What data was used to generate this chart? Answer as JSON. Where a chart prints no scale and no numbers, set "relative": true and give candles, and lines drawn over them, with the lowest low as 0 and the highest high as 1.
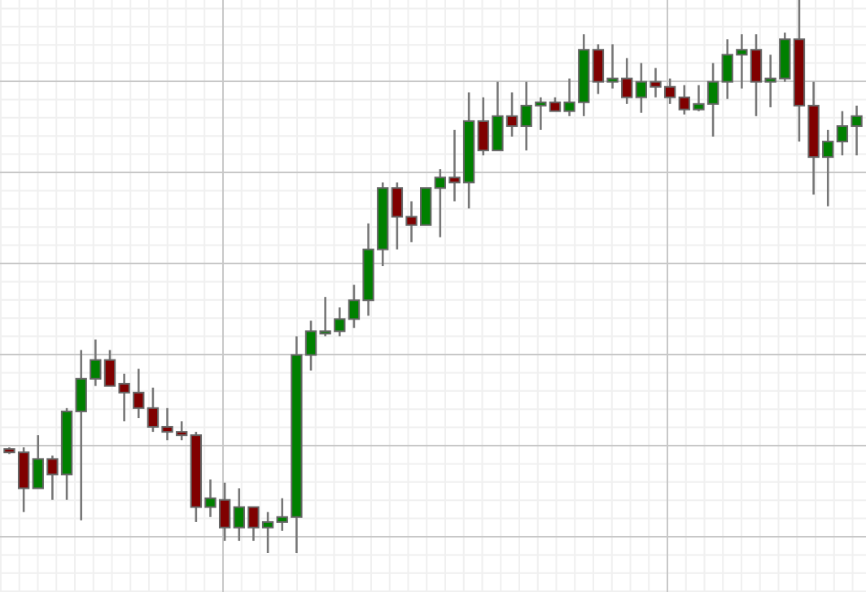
{
  "chart_data": {
    "type": "candlestick",
    "relative": true,
    "grid": true,
    "categories": [
      null,
      null,
      null,
      null,
      null,
      null,
      null,
      null,
      null,
      null,
      null,
      null,
      null,
      null,
      null,
      null,
      null,
      null,
      null,
      null,
      null,
      null,
      null,
      null,
      null,
      null,
      null,
      null,
      null,
      null,
      null,
      null,
      null,
      null,
      null,
      null,
      null,
      null,
      null,
      null,
      null,
      null,
      null,
      null,
      null,
      null,
      null,
      null,
      null,
      null,
      null,
      null,
      null,
      null,
      null,
      null,
      null,
      null,
      null,
      null
    ],
    "ohlc": [
      [
        0.188,
        0.191,
        0.179,
        0.182
      ],
      [
        0.182,
        0.191,
        0.074,
        0.117
      ],
      [
        0.117,
        0.213,
        0.117,
        0.17
      ],
      [
        0.17,
        0.176,
        0.096,
        0.142
      ],
      [
        0.142,
        0.262,
        0.096,
        0.256
      ],
      [
        0.256,
        0.367,
        0.059,
        0.315
      ],
      [
        0.315,
        0.386,
        0.302,
        0.349
      ],
      [
        0.349,
        0.367,
        0.302,
        0.302
      ],
      [
        0.306,
        0.324,
        0.238,
        0.29
      ],
      [
        0.29,
        0.333,
        0.244,
        0.262
      ],
      [
        0.262,
        0.299,
        0.219,
        0.228
      ],
      [
        0.228,
        0.262,
        0.204,
        0.219
      ],
      [
        0.219,
        0.238,
        0.204,
        0.213
      ],
      [
        0.213,
        0.219,
        0.056,
        0.083
      ],
      [
        0.083,
        0.133,
        0.065,
        0.099
      ],
      [
        0.096,
        0.127,
        0.022,
        0.046
      ],
      [
        0.046,
        0.117,
        0.022,
        0.083
      ],
      [
        0.083,
        0.083,
        0.022,
        0.046
      ],
      [
        0.046,
        0.074,
        0,
        0.056
      ],
      [
        0.056,
        0.099,
        0.04,
        0.065
      ],
      [
        0.065,
        0.392,
        0,
        0.358
      ],
      [
        0.358,
        0.42,
        0.33,
        0.401
      ],
      [
        0.398,
        0.463,
        0.392,
        0.401
      ],
      [
        0.401,
        0.444,
        0.392,
        0.423
      ],
      [
        0.423,
        0.485,
        0.407,
        0.457
      ],
      [
        0.457,
        0.596,
        0.429,
        0.549
      ],
      [
        0.549,
        0.67,
        0.519,
        0.66
      ],
      [
        0.66,
        0.67,
        0.549,
        0.608
      ],
      [
        0.608,
        0.636,
        0.562,
        0.593
      ],
      [
        0.593,
        0.66,
        0.593,
        0.66
      ],
      [
        0.66,
        0.694,
        0.571,
        0.679
      ],
      [
        0.679,
        0.765,
        0.636,
        0.67
      ],
      [
        0.67,
        0.833,
        0.623,
        0.781
      ],
      [
        0.781,
        0.824,
        0.719,
        0.728
      ],
      [
        0.728,
        0.852,
        0.728,
        0.79
      ],
      [
        0.79,
        0.833,
        0.753,
        0.772
      ],
      [
        0.772,
        0.852,
        0.728,
        0.809
      ],
      [
        0.809,
        0.824,
        0.765,
        0.815
      ],
      [
        0.815,
        0.824,
        0.799,
        0.799
      ],
      [
        0.799,
        0.858,
        0.79,
        0.815
      ],
      [
        0.815,
        0.938,
        0.79,
        0.91
      ],
      [
        0.91,
        0.92,
        0.83,
        0.852
      ],
      [
        0.852,
        0.92,
        0.84,
        0.858
      ],
      [
        0.858,
        0.895,
        0.812,
        0.824
      ],
      [
        0.824,
        0.886,
        0.796,
        0.852
      ],
      [
        0.852,
        0.877,
        0.824,
        0.843
      ],
      [
        0.843,
        0.858,
        0.812,
        0.824
      ],
      [
        0.824,
        0.846,
        0.793,
        0.802
      ],
      [
        0.802,
        0.846,
        0.799,
        0.812
      ],
      [
        0.812,
        0.886,
        0.753,
        0.852
      ],
      [
        0.852,
        0.929,
        0.821,
        0.901
      ],
      [
        0.901,
        0.938,
        0.84,
        0.91
      ],
      [
        0.91,
        0.938,
        0.79,
        0.852
      ],
      [
        0.852,
        0.901,
        0.806,
        0.858
      ],
      [
        0.858,
        0.941,
        0.852,
        0.929
      ],
      [
        0.929,
        1,
        0.744,
        0.809
      ],
      [
        0.809,
        0.852,
        0.648,
        0.716
      ],
      [
        0.716,
        0.765,
        0.627,
        0.744
      ],
      [
        0.744,
        0.799,
        0.719,
        0.772
      ],
      [
        0.772,
        0.809,
        0.719,
        0.79
      ]
    ],
    "colors": [
      "#800000",
      "#800000",
      "#008000",
      "#800000",
      "#008000",
      "#008000",
      "#008000",
      "#800000",
      "#800000",
      "#800000",
      "#800000",
      "#800000",
      "#800000",
      "#800000",
      "#008000",
      "#800000",
      "#008000",
      "#800000",
      "#008000",
      "#008000",
      "#008000",
      "#008000",
      "#008000",
      "#008000",
      "#008000",
      "#008000",
      "#008000",
      "#800000",
      "#800000",
      "#008000",
      "#008000",
      "#800000",
      "#008000",
      "#800000",
      "#008000",
      "#800000",
      "#008000",
      "#008000",
      "#800000",
      "#008000",
      "#008000",
      "#800000",
      "#008000",
      "#800000",
      "#008000",
      "#800000",
      "#800000",
      "#800000",
      "#008000",
      "#008000",
      "#008000",
      "#008000",
      "#800000",
      "#008000",
      "#008000",
      "#800000",
      "#800000",
      "#008000",
      "#008000",
      "#008000"
    ]
  }
}
